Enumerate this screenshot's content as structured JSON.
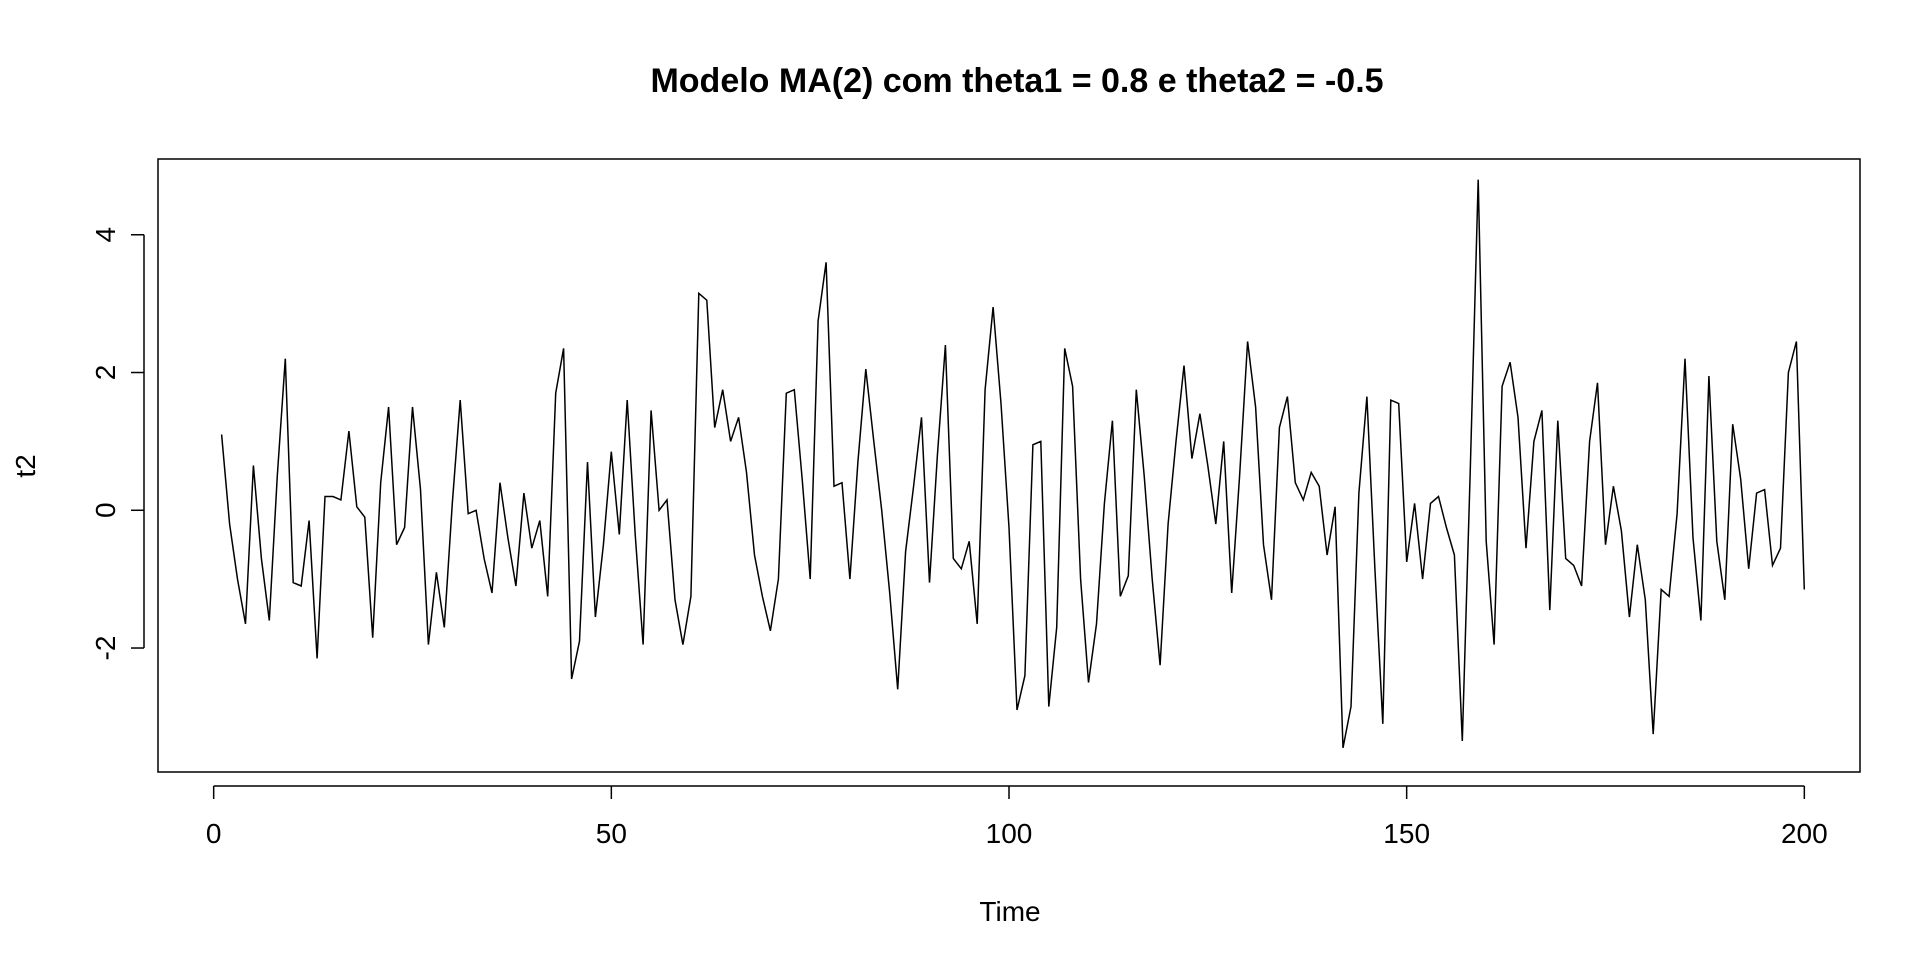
{
  "chart_data": {
    "type": "line",
    "title": "Modelo MA(2) com theta1 = 0.8 e theta2 = -0.5",
    "xlabel": "Time",
    "ylabel": "t2",
    "xlim": [
      -7,
      207
    ],
    "ylim": [
      -3.8,
      5.1
    ],
    "xticks": [
      0,
      50,
      100,
      150,
      200
    ],
    "yticks": [
      -2,
      0,
      2,
      4
    ],
    "grid": false,
    "colors": {
      "line": "#000000",
      "frame": "#000000"
    },
    "series": [
      {
        "x_start": 1,
        "x_step": 1,
        "values": [
          1.1,
          -0.2,
          -1.0,
          -1.65,
          0.65,
          -0.7,
          -1.6,
          0.5,
          2.2,
          -1.05,
          -1.1,
          -0.15,
          -2.15,
          0.2,
          0.2,
          0.15,
          1.15,
          0.05,
          -0.1,
          -1.85,
          0.4,
          1.5,
          -0.5,
          -0.25,
          1.5,
          0.3,
          -1.95,
          -0.9,
          -1.7,
          0.1,
          1.6,
          -0.05,
          0.0,
          -0.7,
          -1.2,
          0.4,
          -0.4,
          -1.1,
          0.25,
          -0.55,
          -0.15,
          -1.25,
          1.7,
          2.35,
          -2.45,
          -1.9,
          0.7,
          -1.55,
          -0.5,
          0.85,
          -0.35,
          1.6,
          -0.35,
          -1.95,
          1.45,
          0.0,
          0.15,
          -1.3,
          -1.95,
          -1.25,
          3.15,
          3.05,
          1.2,
          1.75,
          1.0,
          1.35,
          0.55,
          -0.65,
          -1.25,
          -1.75,
          -1.0,
          1.7,
          1.75,
          0.45,
          -1.0,
          2.75,
          3.6,
          0.35,
          0.4,
          -1.0,
          0.7,
          2.05,
          1.0,
          0.0,
          -1.2,
          -2.6,
          -0.6,
          0.35,
          1.35,
          -1.05,
          0.8,
          2.4,
          -0.7,
          -0.85,
          -0.45,
          -1.65,
          1.75,
          2.95,
          1.55,
          -0.25,
          -2.9,
          -2.4,
          0.95,
          1.0,
          -2.85,
          -1.7,
          2.35,
          1.8,
          -1.0,
          -2.5,
          -1.65,
          0.1,
          1.3,
          -1.25,
          -0.95,
          1.75,
          0.5,
          -1.0,
          -2.25,
          -0.2,
          1.0,
          2.1,
          0.75,
          1.4,
          0.65,
          -0.2,
          1.0,
          -1.2,
          0.5,
          2.45,
          1.5,
          -0.5,
          -1.3,
          1.2,
          1.65,
          0.4,
          0.15,
          0.55,
          0.35,
          -0.65,
          0.05,
          -3.45,
          -2.85,
          0.25,
          1.65,
          -0.85,
          -3.1,
          1.6,
          1.55,
          -0.75,
          0.1,
          -1.0,
          0.1,
          0.2,
          -0.25,
          -0.65,
          -3.35,
          0.6,
          4.8,
          -0.45,
          -1.95,
          1.8,
          2.15,
          1.35,
          -0.55,
          1.0,
          1.45,
          -1.45,
          1.3,
          -0.7,
          -0.8,
          -1.1,
          1.0,
          1.85,
          -0.5,
          0.35,
          -0.3,
          -1.55,
          -0.5,
          -1.3,
          -3.25,
          -1.15,
          -1.25,
          -0.05,
          2.2,
          -0.4,
          -1.6,
          1.95,
          -0.45,
          -1.3,
          1.25,
          0.45,
          -0.85,
          0.25,
          0.3,
          -0.8,
          -0.55,
          2.0,
          2.45,
          -1.15
        ]
      }
    ]
  }
}
